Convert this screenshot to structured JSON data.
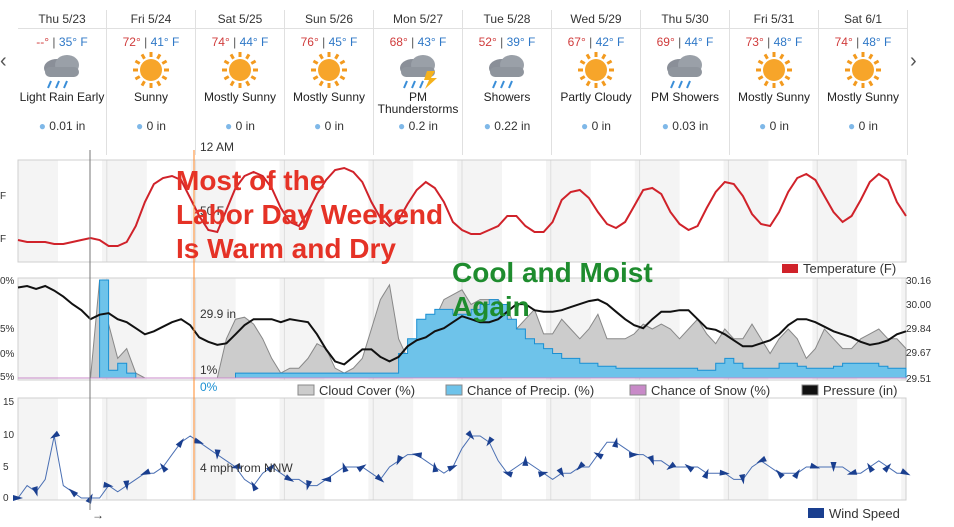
{
  "nav": {
    "prev_icon": "chevron-left-icon",
    "next_icon": "chevron-right-icon"
  },
  "days": [
    {
      "date": "Thu 5/23",
      "hi": "--°",
      "lo": "35° F",
      "icon": "rain-cloud-icon",
      "cond": "Light Rain Early",
      "precip": "0.01 in"
    },
    {
      "date": "Fri 5/24",
      "hi": "72°",
      "lo": "41° F",
      "icon": "sun-icon",
      "cond": "Sunny",
      "precip": "0 in"
    },
    {
      "date": "Sat 5/25",
      "hi": "74°",
      "lo": "44° F",
      "icon": "sun-icon",
      "cond": "Mostly Sunny",
      "precip": "0 in"
    },
    {
      "date": "Sun 5/26",
      "hi": "76°",
      "lo": "45° F",
      "icon": "sun-icon",
      "cond": "Mostly Sunny",
      "precip": "0 in"
    },
    {
      "date": "Mon 5/27",
      "hi": "68°",
      "lo": "43° F",
      "icon": "thunderstorm-icon",
      "cond": "PM Thunderstorms",
      "precip": "0.2 in"
    },
    {
      "date": "Tue 5/28",
      "hi": "52°",
      "lo": "39° F",
      "icon": "rain-cloud-icon",
      "cond": "Showers",
      "precip": "0.22 in"
    },
    {
      "date": "Wed 5/29",
      "hi": "67°",
      "lo": "42° F",
      "icon": "sun-icon",
      "cond": "Partly Cloudy",
      "precip": "0 in"
    },
    {
      "date": "Thu 5/30",
      "hi": "69°",
      "lo": "44° F",
      "icon": "rain-cloud-icon",
      "cond": "PM Showers",
      "precip": "0.03 in"
    },
    {
      "date": "Fri 5/31",
      "hi": "73°",
      "lo": "48° F",
      "icon": "sun-icon",
      "cond": "Mostly Sunny",
      "precip": "0 in"
    },
    {
      "date": "Sat 6/1",
      "hi": "74°",
      "lo": "48° F",
      "icon": "sun-icon",
      "cond": "Mostly Sunny",
      "precip": "0 in"
    }
  ],
  "hover": {
    "time": "12 AM",
    "temp": "50 F",
    "pressure": "29.9 in",
    "cloud": "1%",
    "precip": "0%",
    "wind": "4 mph from NNW"
  },
  "annotations": {
    "left": "Most of the\nLabor Day Weekend\nIs Warm and Dry",
    "right": "Cool and Moist\nAgain"
  },
  "colors": {
    "temperature": "#d0222a",
    "cloud_fill": "#cccccc",
    "cloud_line": "#888888",
    "precip_fill": "#6ec3ea",
    "precip_line": "#1a8fd2",
    "snow": "#c88ac8",
    "pressure": "#111111",
    "wind": "#1a3f8f",
    "annotation_red": "#e53226",
    "annotation_green": "#1e8c2e",
    "cursor": "#ff8a2a"
  },
  "chart_data": [
    {
      "type": "line",
      "legend": [
        "Temperature (F)"
      ],
      "y_tick_labels": [
        "F",
        "F"
      ],
      "series": [
        {
          "name": "Temperature (F)",
          "values": [
            41,
            40,
            40,
            40,
            39,
            39,
            40,
            41,
            42,
            41,
            38,
            38,
            40,
            48,
            60,
            69,
            72,
            73,
            71,
            62,
            53,
            46,
            45,
            56,
            67,
            73,
            75,
            73,
            67,
            57,
            50,
            48,
            55,
            64,
            71,
            76,
            77,
            75,
            70,
            60,
            52,
            48,
            51,
            59,
            66,
            70,
            67,
            60,
            50,
            46,
            44,
            44,
            46,
            48,
            53,
            53,
            48,
            45,
            45,
            50,
            61,
            65,
            66,
            62,
            55,
            49,
            47,
            50,
            58,
            66,
            67,
            64,
            55,
            49,
            46,
            48,
            57,
            65,
            70,
            69,
            63,
            54,
            49,
            48,
            55,
            65,
            72,
            74,
            71,
            63,
            55,
            50,
            53,
            61,
            70,
            74,
            71,
            60,
            53
          ]
        }
      ]
    },
    {
      "type": "area",
      "legend": [
        "Cloud Cover (%)",
        "Chance of Precip. (%)",
        "Chance of Snow (%)",
        "Pressure (in)"
      ],
      "y_tick_labels": [
        "0%",
        "5%",
        "0%",
        "5%",
        "0%"
      ],
      "y2_tick_labels": [
        "30.16",
        "30.00",
        "29.84",
        "29.67",
        "29.51"
      ],
      "series": [
        {
          "name": "Cloud Cover (%)",
          "values": [
            0,
            0,
            0,
            0,
            0,
            0,
            0,
            0,
            0,
            100,
            55,
            20,
            30,
            5,
            0,
            0,
            0,
            0,
            0,
            0,
            0,
            0,
            0,
            40,
            60,
            62,
            55,
            40,
            20,
            5,
            10,
            10,
            20,
            35,
            30,
            10,
            5,
            10,
            20,
            50,
            80,
            95,
            40,
            20,
            20,
            60,
            60,
            80,
            85,
            90,
            75,
            80,
            80,
            80,
            70,
            50,
            60,
            70,
            45,
            45,
            60,
            50,
            40,
            50,
            65,
            40,
            40,
            40,
            45,
            55,
            50,
            55,
            50,
            40,
            50,
            60,
            45,
            35,
            50,
            40,
            40,
            55,
            40,
            25,
            40,
            50,
            40,
            20,
            30,
            50,
            40,
            30,
            30,
            40,
            45,
            50,
            40,
            40,
            30
          ]
        },
        {
          "name": "Chance of Precip. (%)",
          "values": [
            0,
            0,
            0,
            0,
            0,
            0,
            0,
            0,
            0,
            100,
            8,
            15,
            5,
            0,
            0,
            0,
            0,
            0,
            0,
            0,
            0,
            0,
            0,
            0,
            5,
            5,
            5,
            5,
            5,
            5,
            5,
            5,
            5,
            5,
            5,
            5,
            5,
            5,
            5,
            5,
            5,
            5,
            25,
            40,
            60,
            65,
            70,
            70,
            65,
            65,
            70,
            75,
            80,
            75,
            60,
            50,
            40,
            35,
            30,
            25,
            20,
            20,
            15,
            15,
            12,
            12,
            10,
            10,
            10,
            10,
            10,
            10,
            10,
            10,
            10,
            8,
            8,
            15,
            20,
            15,
            10,
            10,
            10,
            10,
            15,
            15,
            12,
            10,
            10,
            10,
            12,
            15,
            15,
            15,
            15,
            12,
            10,
            10,
            10
          ]
        },
        {
          "name": "Chance of Snow (%)",
          "values": [
            0,
            0,
            0,
            0,
            0,
            0,
            0,
            0,
            0,
            0,
            0,
            0,
            0,
            0,
            0,
            0,
            0,
            0,
            0,
            0,
            0,
            0,
            0,
            0,
            0,
            0,
            0,
            0,
            0,
            0,
            0,
            0,
            0,
            0,
            0,
            0,
            0,
            0,
            0,
            0,
            0,
            0,
            0,
            0,
            0,
            0,
            0,
            0,
            0,
            0,
            0,
            0,
            0,
            0,
            0,
            0,
            0,
            0,
            0,
            0,
            0,
            0,
            0,
            0,
            0,
            0,
            0,
            0,
            0,
            0,
            0,
            0,
            0,
            0,
            0,
            0,
            0,
            0,
            0,
            0,
            0,
            0,
            0,
            0,
            0,
            0,
            0,
            0,
            0,
            0,
            0,
            0,
            0,
            0,
            0,
            0,
            0,
            0,
            0
          ]
        },
        {
          "name": "Pressure (in)",
          "values": [
            30.11,
            30.12,
            30.1,
            30.12,
            30.09,
            30.05,
            30.0,
            29.96,
            29.9,
            29.93,
            29.94,
            29.9,
            29.88,
            29.84,
            29.8,
            29.82,
            29.85,
            29.88,
            29.9,
            29.86,
            29.78,
            29.75,
            29.73,
            29.74,
            29.8,
            29.86,
            29.9,
            29.9,
            29.9,
            29.88,
            29.9,
            29.89,
            29.88,
            29.8,
            29.7,
            29.62,
            29.6,
            29.65,
            29.7,
            29.7,
            29.65,
            29.62,
            29.65,
            29.72,
            29.76,
            29.78,
            29.82,
            29.84,
            29.88,
            29.92,
            29.9,
            29.88,
            29.88,
            29.9,
            29.95,
            30.0,
            30.0,
            29.96,
            29.95,
            29.95,
            29.96,
            29.98,
            30.0,
            30.02,
            30.03,
            30.0,
            29.95,
            29.9,
            29.86,
            29.84,
            29.9,
            29.95,
            29.95,
            29.96,
            29.96,
            29.9,
            29.84,
            29.83,
            29.8,
            29.76,
            29.72,
            29.72,
            29.74,
            29.76,
            29.8,
            29.86,
            29.9,
            29.9,
            29.88,
            29.85,
            29.82,
            29.8,
            29.78,
            29.75,
            29.73,
            29.74,
            29.76,
            29.8,
            29.82
          ]
        }
      ]
    },
    {
      "type": "line",
      "legend": [
        "Wind Speed"
      ],
      "y_tick_labels": [
        "15",
        "10",
        "5",
        "0"
      ],
      "series": [
        {
          "name": "Wind Speed",
          "values": [
            0,
            2,
            1,
            3,
            10,
            2,
            1,
            0,
            0,
            0,
            2,
            1,
            2,
            3,
            4,
            4,
            5,
            7,
            9,
            10,
            9,
            8,
            7,
            6,
            5,
            3,
            2,
            4,
            5,
            4,
            3,
            3,
            2,
            2,
            3,
            4,
            5,
            5,
            5,
            4,
            3,
            5,
            6,
            7,
            7,
            6,
            5,
            4,
            5,
            8,
            10,
            10,
            9,
            6,
            4,
            5,
            6,
            5,
            4,
            3,
            4,
            4,
            5,
            5,
            7,
            9,
            9,
            8,
            7,
            7,
            6,
            6,
            5,
            5,
            5,
            5,
            4,
            4,
            4,
            3,
            3,
            5,
            6,
            5,
            4,
            4,
            4,
            5,
            5,
            5,
            5,
            5,
            4,
            4,
            5,
            6,
            5,
            4,
            4
          ]
        }
      ]
    }
  ]
}
